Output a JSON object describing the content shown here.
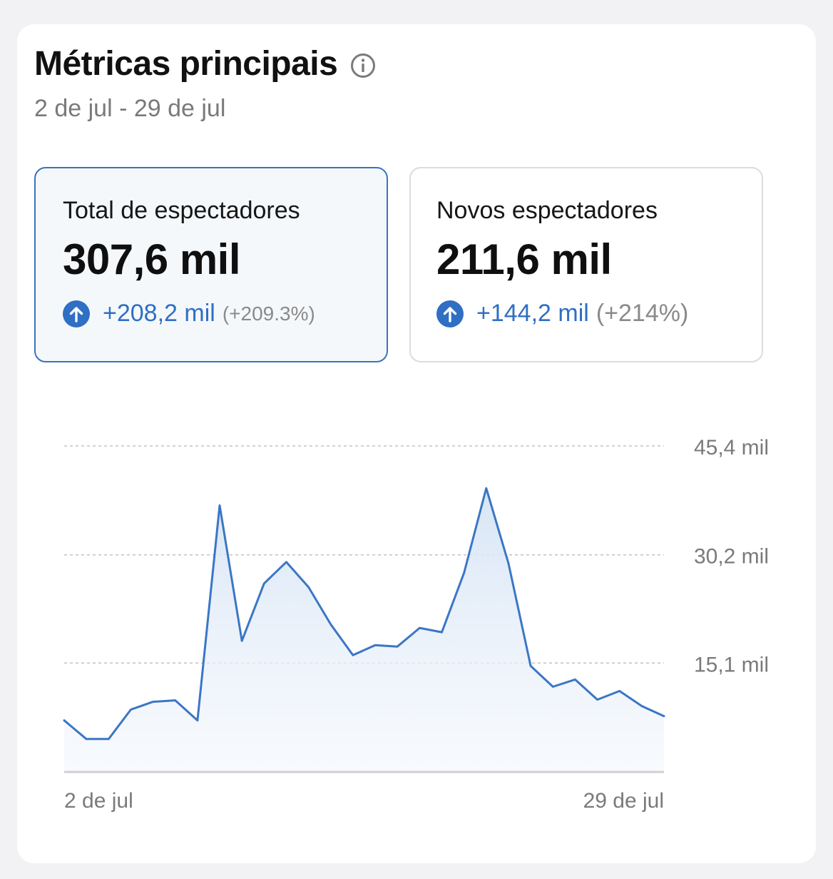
{
  "header": {
    "title": "Métricas principais",
    "date_range": "2 de jul - 29 de jul"
  },
  "metrics": [
    {
      "label": "Total de espectadores",
      "value": "307,6 mil",
      "change": "+208,2 mil",
      "change_pct": "(+209.3%)",
      "selected": true
    },
    {
      "label": "Novos espectadores",
      "value": "211,6 mil",
      "change": "+144,2 mil",
      "change_pct": "(+214%)",
      "selected": false
    }
  ],
  "colors": {
    "accent": "#3a73bf",
    "line": "#3b76c6",
    "fill": "#dbe7f6"
  },
  "chart_data": {
    "type": "area",
    "x_tick_labels": [
      "2 de jul",
      "29 de jul"
    ],
    "y_tick_values": [
      15100,
      30200,
      45400
    ],
    "y_tick_labels": [
      "15,1 mil",
      "30,2 mil",
      "45,4 mil"
    ],
    "ylim": [
      0,
      45400
    ],
    "grid": true,
    "y_axis_side": "right",
    "series": [
      {
        "values": [
          7100,
          4500,
          4500,
          8600,
          9700,
          9900,
          7100,
          37100,
          18200,
          26200,
          29200,
          25700,
          20500,
          16200,
          17600,
          17400,
          20000,
          19400,
          27700,
          39500,
          29000,
          14700,
          11800,
          12800,
          10000,
          11200,
          9100,
          7700
        ]
      }
    ]
  }
}
